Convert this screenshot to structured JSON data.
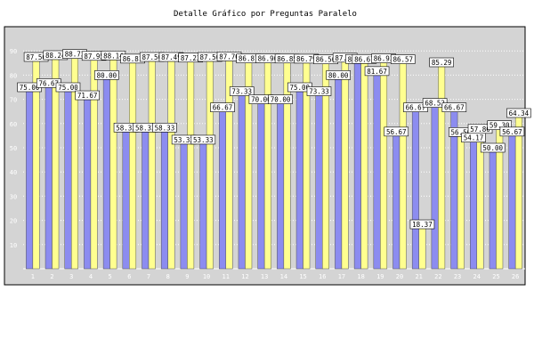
{
  "chart_data": {
    "type": "bar",
    "title": "Detalle Gráfico por Preguntas Paralelo",
    "xlabel": "",
    "ylabel": "",
    "ylim": [
      0,
      100
    ],
    "yticks": [
      10,
      20,
      30,
      40,
      50,
      60,
      70,
      80,
      90
    ],
    "grid": true,
    "legend": "none",
    "categories": [
      "1",
      "2",
      "3",
      "4",
      "5",
      "6",
      "7",
      "8",
      "9",
      "10",
      "11",
      "12",
      "13",
      "14",
      "15",
      "16",
      "17",
      "18",
      "19",
      "20",
      "21",
      "22",
      "23",
      "24",
      "25",
      "26"
    ],
    "series": [
      {
        "values": [
          75.0,
          76.67,
          75.0,
          71.67,
          80.0,
          58.33,
          58.33,
          58.33,
          53.33,
          53.33,
          66.67,
          73.33,
          70.0,
          70.0,
          75.0,
          73.33,
          80.0,
          86.67,
          81.67,
          56.67,
          66.67,
          68.52,
          66.67,
          54.17,
          50.0,
          56.67
        ],
        "labels": [
          "75.00",
          "76.67",
          "75.00",
          "71.67",
          "80.00",
          "58.33",
          "58.33",
          "58.33",
          "53.33",
          "53.33",
          "66.67",
          "73.33",
          "70.00",
          "70.00",
          "75.00",
          "73.33",
          "80.00",
          "86.67",
          "81.67",
          "56.67",
          "66.67",
          "68.52",
          "66.67",
          "54.17",
          "50.00",
          "56.67"
        ],
        "color": "#8c8cf0"
      },
      {
        "values": [
          87.5,
          88.24,
          88.73,
          87.95,
          88.14,
          86.81,
          87.5,
          87.49,
          87.22,
          87.5,
          87.7,
          86.87,
          86.9,
          86.85,
          86.79,
          86.5,
          87.2,
          86.67,
          86.93,
          86.57,
          18.37,
          85.29,
          56.5,
          57.8,
          59.3,
          64.34
        ],
        "labels": [
          "87.50",
          "88.24",
          "88.73",
          "87.95",
          "88.14",
          "86.81",
          "87.50",
          "87.49",
          "87.22",
          "87.50",
          "87.70",
          "86.87",
          "86.90",
          "86.85",
          "86.79",
          "86.50",
          "87.20",
          "86.67",
          "86.93",
          "86.57",
          "18.37",
          "85.29",
          "56.50",
          "57.80",
          "59.30",
          "64.34"
        ],
        "color": "#ffff90"
      }
    ]
  },
  "colors": {
    "plot_background": "#d4d4d4",
    "grid": "#ffffff",
    "bar_outline": "#555555",
    "label_box": "#ffffff",
    "label_border": "#000000"
  }
}
